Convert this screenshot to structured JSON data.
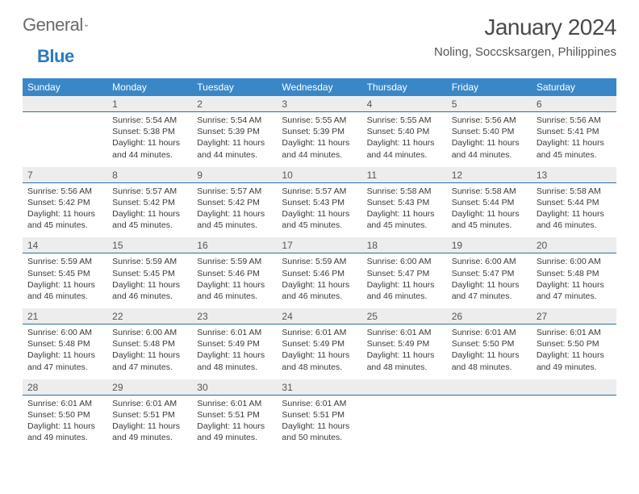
{
  "brand": {
    "name1": "General",
    "name2": "Blue"
  },
  "title": "January 2024",
  "location": "Noling, Soccsksargen, Philippines",
  "colors": {
    "header_bg": "#3a87c8",
    "header_text": "#ffffff",
    "daynum_bg": "#ededed",
    "daynum_border": "#2f6fa3",
    "text": "#3a3a3a",
    "title_text": "#4a4a4a",
    "logo_gray": "#6a6a6a",
    "logo_blue": "#2a79bf"
  },
  "typography": {
    "title_fontsize": 28,
    "location_fontsize": 15,
    "dow_fontsize": 12,
    "daynum_fontsize": 12,
    "body_fontsize": 10.5
  },
  "days_of_week": [
    "Sunday",
    "Monday",
    "Tuesday",
    "Wednesday",
    "Thursday",
    "Friday",
    "Saturday"
  ],
  "weeks": [
    [
      {
        "n": "",
        "sr": "",
        "ss": "",
        "dl1": "",
        "dl2": ""
      },
      {
        "n": "1",
        "sr": "Sunrise: 5:54 AM",
        "ss": "Sunset: 5:38 PM",
        "dl1": "Daylight: 11 hours",
        "dl2": "and 44 minutes."
      },
      {
        "n": "2",
        "sr": "Sunrise: 5:54 AM",
        "ss": "Sunset: 5:39 PM",
        "dl1": "Daylight: 11 hours",
        "dl2": "and 44 minutes."
      },
      {
        "n": "3",
        "sr": "Sunrise: 5:55 AM",
        "ss": "Sunset: 5:39 PM",
        "dl1": "Daylight: 11 hours",
        "dl2": "and 44 minutes."
      },
      {
        "n": "4",
        "sr": "Sunrise: 5:55 AM",
        "ss": "Sunset: 5:40 PM",
        "dl1": "Daylight: 11 hours",
        "dl2": "and 44 minutes."
      },
      {
        "n": "5",
        "sr": "Sunrise: 5:56 AM",
        "ss": "Sunset: 5:40 PM",
        "dl1": "Daylight: 11 hours",
        "dl2": "and 44 minutes."
      },
      {
        "n": "6",
        "sr": "Sunrise: 5:56 AM",
        "ss": "Sunset: 5:41 PM",
        "dl1": "Daylight: 11 hours",
        "dl2": "and 45 minutes."
      }
    ],
    [
      {
        "n": "7",
        "sr": "Sunrise: 5:56 AM",
        "ss": "Sunset: 5:42 PM",
        "dl1": "Daylight: 11 hours",
        "dl2": "and 45 minutes."
      },
      {
        "n": "8",
        "sr": "Sunrise: 5:57 AM",
        "ss": "Sunset: 5:42 PM",
        "dl1": "Daylight: 11 hours",
        "dl2": "and 45 minutes."
      },
      {
        "n": "9",
        "sr": "Sunrise: 5:57 AM",
        "ss": "Sunset: 5:42 PM",
        "dl1": "Daylight: 11 hours",
        "dl2": "and 45 minutes."
      },
      {
        "n": "10",
        "sr": "Sunrise: 5:57 AM",
        "ss": "Sunset: 5:43 PM",
        "dl1": "Daylight: 11 hours",
        "dl2": "and 45 minutes."
      },
      {
        "n": "11",
        "sr": "Sunrise: 5:58 AM",
        "ss": "Sunset: 5:43 PM",
        "dl1": "Daylight: 11 hours",
        "dl2": "and 45 minutes."
      },
      {
        "n": "12",
        "sr": "Sunrise: 5:58 AM",
        "ss": "Sunset: 5:44 PM",
        "dl1": "Daylight: 11 hours",
        "dl2": "and 45 minutes."
      },
      {
        "n": "13",
        "sr": "Sunrise: 5:58 AM",
        "ss": "Sunset: 5:44 PM",
        "dl1": "Daylight: 11 hours",
        "dl2": "and 46 minutes."
      }
    ],
    [
      {
        "n": "14",
        "sr": "Sunrise: 5:59 AM",
        "ss": "Sunset: 5:45 PM",
        "dl1": "Daylight: 11 hours",
        "dl2": "and 46 minutes."
      },
      {
        "n": "15",
        "sr": "Sunrise: 5:59 AM",
        "ss": "Sunset: 5:45 PM",
        "dl1": "Daylight: 11 hours",
        "dl2": "and 46 minutes."
      },
      {
        "n": "16",
        "sr": "Sunrise: 5:59 AM",
        "ss": "Sunset: 5:46 PM",
        "dl1": "Daylight: 11 hours",
        "dl2": "and 46 minutes."
      },
      {
        "n": "17",
        "sr": "Sunrise: 5:59 AM",
        "ss": "Sunset: 5:46 PM",
        "dl1": "Daylight: 11 hours",
        "dl2": "and 46 minutes."
      },
      {
        "n": "18",
        "sr": "Sunrise: 6:00 AM",
        "ss": "Sunset: 5:47 PM",
        "dl1": "Daylight: 11 hours",
        "dl2": "and 46 minutes."
      },
      {
        "n": "19",
        "sr": "Sunrise: 6:00 AM",
        "ss": "Sunset: 5:47 PM",
        "dl1": "Daylight: 11 hours",
        "dl2": "and 47 minutes."
      },
      {
        "n": "20",
        "sr": "Sunrise: 6:00 AM",
        "ss": "Sunset: 5:48 PM",
        "dl1": "Daylight: 11 hours",
        "dl2": "and 47 minutes."
      }
    ],
    [
      {
        "n": "21",
        "sr": "Sunrise: 6:00 AM",
        "ss": "Sunset: 5:48 PM",
        "dl1": "Daylight: 11 hours",
        "dl2": "and 47 minutes."
      },
      {
        "n": "22",
        "sr": "Sunrise: 6:00 AM",
        "ss": "Sunset: 5:48 PM",
        "dl1": "Daylight: 11 hours",
        "dl2": "and 47 minutes."
      },
      {
        "n": "23",
        "sr": "Sunrise: 6:01 AM",
        "ss": "Sunset: 5:49 PM",
        "dl1": "Daylight: 11 hours",
        "dl2": "and 48 minutes."
      },
      {
        "n": "24",
        "sr": "Sunrise: 6:01 AM",
        "ss": "Sunset: 5:49 PM",
        "dl1": "Daylight: 11 hours",
        "dl2": "and 48 minutes."
      },
      {
        "n": "25",
        "sr": "Sunrise: 6:01 AM",
        "ss": "Sunset: 5:49 PM",
        "dl1": "Daylight: 11 hours",
        "dl2": "and 48 minutes."
      },
      {
        "n": "26",
        "sr": "Sunrise: 6:01 AM",
        "ss": "Sunset: 5:50 PM",
        "dl1": "Daylight: 11 hours",
        "dl2": "and 48 minutes."
      },
      {
        "n": "27",
        "sr": "Sunrise: 6:01 AM",
        "ss": "Sunset: 5:50 PM",
        "dl1": "Daylight: 11 hours",
        "dl2": "and 49 minutes."
      }
    ],
    [
      {
        "n": "28",
        "sr": "Sunrise: 6:01 AM",
        "ss": "Sunset: 5:50 PM",
        "dl1": "Daylight: 11 hours",
        "dl2": "and 49 minutes."
      },
      {
        "n": "29",
        "sr": "Sunrise: 6:01 AM",
        "ss": "Sunset: 5:51 PM",
        "dl1": "Daylight: 11 hours",
        "dl2": "and 49 minutes."
      },
      {
        "n": "30",
        "sr": "Sunrise: 6:01 AM",
        "ss": "Sunset: 5:51 PM",
        "dl1": "Daylight: 11 hours",
        "dl2": "and 49 minutes."
      },
      {
        "n": "31",
        "sr": "Sunrise: 6:01 AM",
        "ss": "Sunset: 5:51 PM",
        "dl1": "Daylight: 11 hours",
        "dl2": "and 50 minutes."
      },
      {
        "n": "",
        "sr": "",
        "ss": "",
        "dl1": "",
        "dl2": ""
      },
      {
        "n": "",
        "sr": "",
        "ss": "",
        "dl1": "",
        "dl2": ""
      },
      {
        "n": "",
        "sr": "",
        "ss": "",
        "dl1": "",
        "dl2": ""
      }
    ]
  ]
}
